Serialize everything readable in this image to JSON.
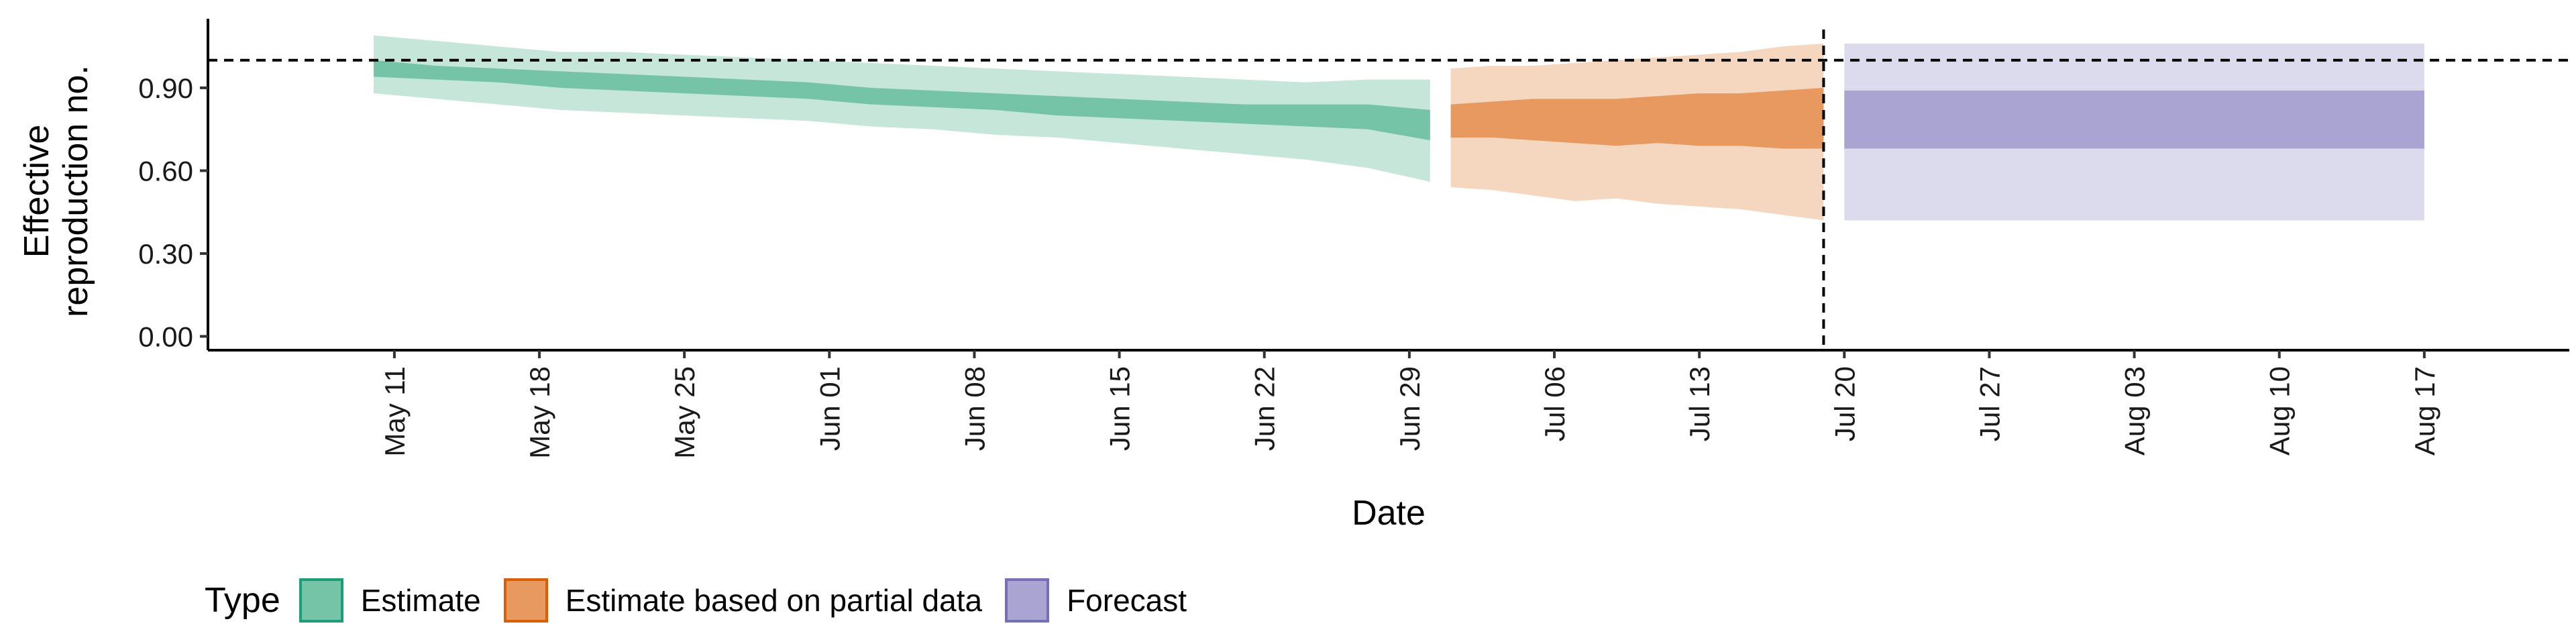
{
  "chart_data": {
    "type": "area",
    "xlabel": "Date",
    "ylabel_lines": [
      "Effective",
      "reproduction no."
    ],
    "ylim": [
      -0.05,
      1.15
    ],
    "y_ticks": [
      0.0,
      0.3,
      0.6,
      0.9
    ],
    "y_tick_labels": [
      "0.00",
      "0.30",
      "0.60",
      "0.90"
    ],
    "x_range": [
      "2020-05-02",
      "2020-08-24"
    ],
    "x_ticks": [
      "2020-05-11",
      "2020-05-18",
      "2020-05-25",
      "2020-06-01",
      "2020-06-08",
      "2020-06-15",
      "2020-06-22",
      "2020-06-29",
      "2020-07-06",
      "2020-07-13",
      "2020-07-20",
      "2020-07-27",
      "2020-08-03",
      "2020-08-10",
      "2020-08-17"
    ],
    "x_tick_labels": [
      "May 11",
      "May 18",
      "May 25",
      "Jun 01",
      "Jun 08",
      "Jun 15",
      "Jun 22",
      "Jun 29",
      "Jul 06",
      "Jul 13",
      "Jul 20",
      "Jul 27",
      "Aug 03",
      "Aug 10",
      "Aug 17"
    ],
    "reference_hline": 1.0,
    "reference_vline": "2020-07-19",
    "legend_title": "Type",
    "legend_position": "bottom",
    "series": [
      {
        "name": "Estimate",
        "color": "#1b9e77",
        "fill_inner": "#75c4a8",
        "fill_outer": "#c6e6da",
        "x": [
          "2020-05-10",
          "2020-05-13",
          "2020-05-16",
          "2020-05-19",
          "2020-05-22",
          "2020-05-25",
          "2020-05-28",
          "2020-05-31",
          "2020-06-03",
          "2020-06-06",
          "2020-06-09",
          "2020-06-12",
          "2020-06-15",
          "2020-06-18",
          "2020-06-21",
          "2020-06-24",
          "2020-06-27",
          "2020-06-30"
        ],
        "lower90": [
          0.88,
          0.86,
          0.84,
          0.82,
          0.81,
          0.8,
          0.79,
          0.78,
          0.76,
          0.75,
          0.73,
          0.72,
          0.7,
          0.68,
          0.66,
          0.64,
          0.61,
          0.56
        ],
        "lower50": [
          0.94,
          0.93,
          0.92,
          0.9,
          0.89,
          0.88,
          0.87,
          0.86,
          0.84,
          0.83,
          0.82,
          0.8,
          0.79,
          0.78,
          0.77,
          0.76,
          0.75,
          0.71
        ],
        "upper50": [
          1.0,
          0.98,
          0.97,
          0.96,
          0.95,
          0.94,
          0.93,
          0.92,
          0.9,
          0.89,
          0.88,
          0.87,
          0.86,
          0.85,
          0.84,
          0.84,
          0.84,
          0.82
        ],
        "upper90": [
          1.09,
          1.07,
          1.05,
          1.03,
          1.03,
          1.02,
          1.01,
          1.0,
          0.99,
          0.98,
          0.97,
          0.96,
          0.95,
          0.94,
          0.93,
          0.92,
          0.93,
          0.93
        ]
      },
      {
        "name": "Estimate based on partial data",
        "color": "#d95f02",
        "fill_inner": "#e8995f",
        "fill_outer": "#f5d6be",
        "x": [
          "2020-07-01",
          "2020-07-03",
          "2020-07-05",
          "2020-07-07",
          "2020-07-09",
          "2020-07-11",
          "2020-07-13",
          "2020-07-15",
          "2020-07-17",
          "2020-07-19"
        ],
        "lower90": [
          0.54,
          0.53,
          0.51,
          0.49,
          0.5,
          0.48,
          0.47,
          0.46,
          0.44,
          0.42
        ],
        "lower50": [
          0.72,
          0.72,
          0.71,
          0.7,
          0.69,
          0.7,
          0.69,
          0.69,
          0.68,
          0.68
        ],
        "upper50": [
          0.84,
          0.85,
          0.86,
          0.86,
          0.86,
          0.87,
          0.88,
          0.88,
          0.89,
          0.9
        ],
        "upper90": [
          0.97,
          0.98,
          0.98,
          0.99,
          1.0,
          1.01,
          1.02,
          1.03,
          1.05,
          1.06
        ]
      },
      {
        "name": "Forecast",
        "color": "#7570b3",
        "fill_inner": "#a9a4d1",
        "fill_outer": "#dcdaed",
        "x": [
          "2020-07-20",
          "2020-08-17"
        ],
        "lower90": [
          0.42,
          0.42
        ],
        "lower50": [
          0.68,
          0.68
        ],
        "upper50": [
          0.89,
          0.89
        ],
        "upper90": [
          1.06,
          1.06
        ]
      }
    ]
  }
}
